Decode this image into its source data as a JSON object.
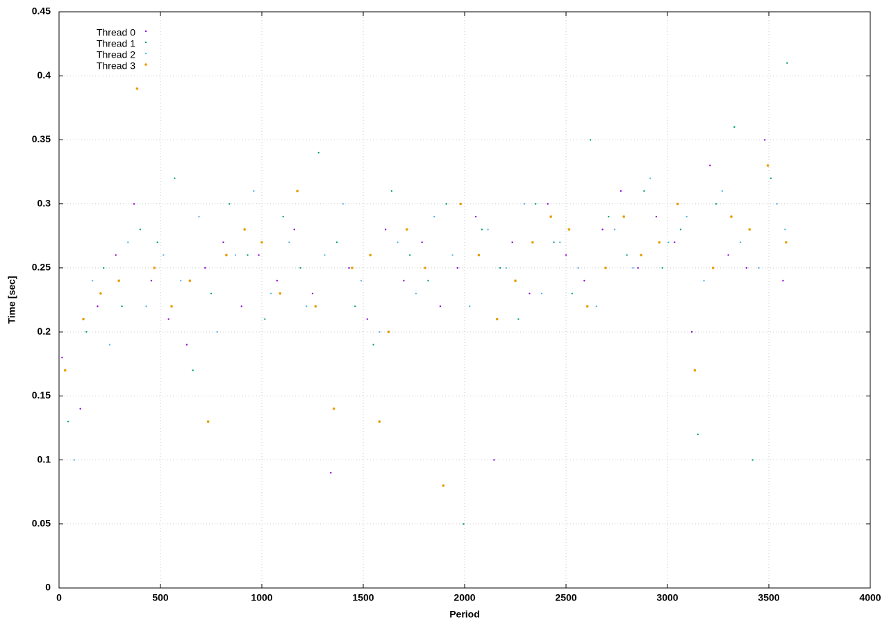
{
  "chart_data": {
    "type": "scatter",
    "xlabel": "Period",
    "ylabel": "Time [sec]",
    "xlim": [
      0,
      4000
    ],
    "ylim": [
      0,
      0.45
    ],
    "xticks": [
      0,
      500,
      1000,
      1500,
      2000,
      2500,
      3000,
      3500,
      4000
    ],
    "yticks": [
      0,
      0.05,
      0.1,
      0.15,
      0.2,
      0.25,
      0.3,
      0.35,
      0.4,
      0.45
    ],
    "grid": true,
    "legend": "top-left",
    "series": [
      {
        "name": "Thread 0",
        "color": "#9400d3",
        "x": [
          15,
          105,
          190,
          280,
          370,
          455,
          540,
          630,
          720,
          810,
          900,
          985,
          1075,
          1160,
          1250,
          1340,
          1430,
          1520,
          1610,
          1700,
          1790,
          1880,
          1965,
          2055,
          2145,
          2235,
          2320,
          2410,
          2500,
          2590,
          2680,
          2770,
          2855,
          2945,
          3035,
          3120,
          3210,
          3300,
          3390,
          3480,
          3570
        ],
        "values": [
          0.18,
          0.14,
          0.22,
          0.26,
          0.3,
          0.24,
          0.21,
          0.19,
          0.25,
          0.27,
          0.22,
          0.26,
          0.24,
          0.28,
          0.23,
          0.09,
          0.25,
          0.21,
          0.28,
          0.24,
          0.27,
          0.22,
          0.25,
          0.29,
          0.1,
          0.27,
          0.23,
          0.3,
          0.26,
          0.24,
          0.28,
          0.31,
          0.25,
          0.29,
          0.27,
          0.2,
          0.33,
          0.26,
          0.25,
          0.35,
          0.24
        ]
      },
      {
        "name": "Thread 1",
        "color": "#009e73",
        "x": [
          45,
          135,
          220,
          310,
          400,
          485,
          570,
          660,
          750,
          840,
          930,
          1015,
          1105,
          1190,
          1280,
          1370,
          1460,
          1550,
          1640,
          1730,
          1820,
          1910,
          1995,
          2085,
          2175,
          2265,
          2350,
          2440,
          2530,
          2620,
          2710,
          2800,
          2885,
          2975,
          3065,
          3150,
          3240,
          3330,
          3420,
          3510,
          3590
        ],
        "values": [
          0.13,
          0.2,
          0.25,
          0.22,
          0.28,
          0.27,
          0.32,
          0.17,
          0.23,
          0.3,
          0.26,
          0.21,
          0.29,
          0.25,
          0.34,
          0.27,
          0.22,
          0.19,
          0.31,
          0.26,
          0.24,
          0.3,
          0.05,
          0.28,
          0.25,
          0.21,
          0.3,
          0.27,
          0.23,
          0.35,
          0.29,
          0.26,
          0.31,
          0.25,
          0.28,
          0.12,
          0.3,
          0.36,
          0.1,
          0.32,
          0.41
        ]
      },
      {
        "name": "Thread 2",
        "color": "#56b4e9",
        "x": [
          75,
          165,
          250,
          340,
          430,
          515,
          600,
          690,
          780,
          870,
          960,
          1045,
          1135,
          1220,
          1310,
          1400,
          1490,
          1580,
          1670,
          1760,
          1850,
          1940,
          2025,
          2115,
          2205,
          2295,
          2380,
          2470,
          2560,
          2650,
          2740,
          2830,
          2915,
          3005,
          3095,
          3180,
          3270,
          3360,
          3450,
          3540,
          3580
        ],
        "values": [
          0.1,
          0.24,
          0.19,
          0.27,
          0.22,
          0.26,
          0.24,
          0.29,
          0.2,
          0.26,
          0.31,
          0.23,
          0.27,
          0.22,
          0.26,
          0.3,
          0.24,
          0.2,
          0.27,
          0.23,
          0.29,
          0.26,
          0.22,
          0.28,
          0.25,
          0.3,
          0.23,
          0.27,
          0.25,
          0.22,
          0.28,
          0.25,
          0.32,
          0.27,
          0.29,
          0.24,
          0.31,
          0.27,
          0.25,
          0.3,
          0.28
        ]
      },
      {
        "name": "Thread 3",
        "color": "#e69f00",
        "x": [
          30,
          120,
          205,
          295,
          385,
          470,
          555,
          645,
          735,
          825,
          915,
          1000,
          1090,
          1175,
          1265,
          1355,
          1445,
          1535,
          1580,
          1625,
          1715,
          1805,
          1895,
          1980,
          2070,
          2160,
          2250,
          2335,
          2425,
          2515,
          2605,
          2695,
          2785,
          2870,
          2960,
          3050,
          3135,
          3225,
          3315,
          3405,
          3495,
          3585
        ],
        "values": [
          0.17,
          0.21,
          0.23,
          0.24,
          0.39,
          0.25,
          0.22,
          0.24,
          0.13,
          0.26,
          0.28,
          0.27,
          0.23,
          0.31,
          0.22,
          0.14,
          0.25,
          0.26,
          0.13,
          0.2,
          0.28,
          0.25,
          0.08,
          0.3,
          0.26,
          0.21,
          0.24,
          0.27,
          0.29,
          0.28,
          0.22,
          0.25,
          0.29,
          0.26,
          0.27,
          0.3,
          0.17,
          0.25,
          0.29,
          0.28,
          0.33,
          0.27
        ]
      }
    ]
  }
}
